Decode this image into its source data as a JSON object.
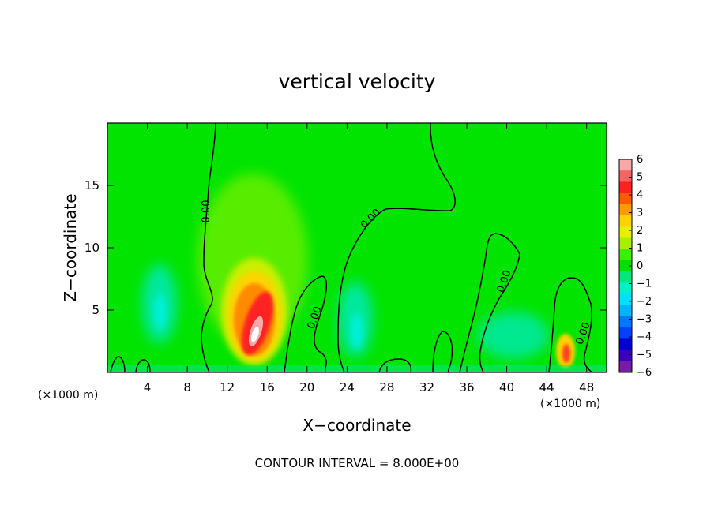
{
  "chart_data": {
    "type": "heatmap",
    "title": "vertical velocity",
    "xlabel": "X−coordinate",
    "ylabel": "Z−coordinate",
    "x_unit": "(×1000 m)",
    "y_unit": "(×1000 m)",
    "xlim": [
      0,
      50
    ],
    "ylim": [
      0,
      20
    ],
    "x_ticks": [
      "4",
      "8",
      "12",
      "16",
      "20",
      "24",
      "28",
      "32",
      "36",
      "40",
      "44",
      "48"
    ],
    "y_ticks": [
      "5",
      "10",
      "15"
    ],
    "colorbar": {
      "ticks": [
        "6",
        "5",
        "4",
        "3",
        "2",
        "1",
        "0",
        "−1",
        "−2",
        "−3",
        "−4",
        "−5",
        "−6"
      ],
      "range": [
        -6,
        6
      ],
      "colors": [
        "#f7a8a8",
        "#f46464",
        "#ff2020",
        "#ff5a00",
        "#ff9a00",
        "#ffd200",
        "#e6f000",
        "#a8f000",
        "#3cf000",
        "#00e000",
        "#00e87a",
        "#00f0c8",
        "#00e0ff",
        "#00b4ff",
        "#0078ff",
        "#0040ff",
        "#0000d2",
        "#3a00c0",
        "#7a1aa8"
      ]
    },
    "contour_label": "0.00",
    "contour_interval_text": "CONTOUR INTERVAL = 8.000E+00",
    "features": [
      {
        "x": 14.8,
        "z": 4.2,
        "value": 6
      },
      {
        "x": 46.0,
        "z": 1.8,
        "value": 4
      },
      {
        "x": 5.0,
        "z": 5.0,
        "value": -2
      },
      {
        "x": 25.0,
        "z": 4.0,
        "value": -2
      },
      {
        "x": 41.0,
        "z": 2.5,
        "value": -1
      }
    ]
  }
}
